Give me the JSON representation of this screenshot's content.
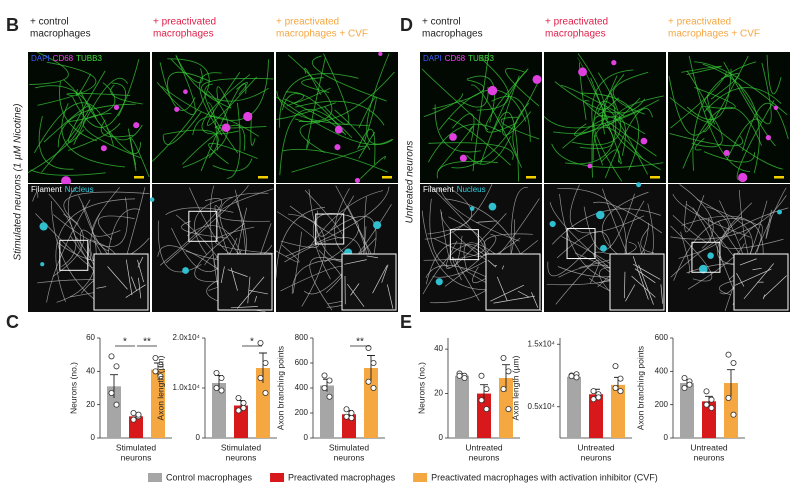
{
  "panels": {
    "B": "B",
    "D": "D",
    "C": "C",
    "E": "E"
  },
  "headers": [
    [
      "+ control",
      "macrophages"
    ],
    [
      "+ preactivated",
      "macrophages"
    ],
    [
      "+ preactivated",
      "macrophages + CVF"
    ]
  ],
  "header_colors": [
    "#222222",
    "#e0204a",
    "#f5a742"
  ],
  "stain_label": [
    {
      "text": "DAPI",
      "color": "#3a5cff"
    },
    {
      "text": "CD68",
      "color": "#ff40ff"
    },
    {
      "text": "TUBB3",
      "color": "#40e040"
    }
  ],
  "filament_label": [
    {
      "text": "Filament",
      "color": "#ffffff"
    },
    {
      "text": "Nucleus",
      "color": "#30d0e0"
    }
  ],
  "row_labels": [
    "Stimulated neurons (1 µM Nicotine)",
    "Untreated neurons"
  ],
  "legend": [
    {
      "name": "Control macrophages",
      "color": "#a6a6a6"
    },
    {
      "name": "Preactivated macrophages",
      "color": "#d7191c"
    },
    {
      "name": "Preactivated macrophages with activation inhibitor (CVF)",
      "color": "#f5a742"
    }
  ],
  "chart_data": [
    {
      "type": "bar",
      "ylabel": "Neurons (no.)",
      "xlabel": [
        "Stimulated",
        "neurons"
      ],
      "ylim": [
        0,
        60
      ],
      "yticks": [
        0,
        20,
        40,
        60
      ],
      "values": [
        31,
        13,
        41
      ],
      "errors": [
        7,
        2,
        4
      ],
      "points": [
        [
          49,
          43,
          27,
          20
        ],
        [
          15,
          13,
          11,
          14
        ],
        [
          48,
          44,
          40,
          37
        ]
      ],
      "significance": [
        {
          "label": "*",
          "between": [
            "Control macrophages",
            "Preactivated macrophages"
          ]
        },
        {
          "label": "**",
          "between": [
            "Preactivated macrophages",
            "Preactivated macrophages with activation inhibitor (CVF)"
          ]
        }
      ]
    },
    {
      "type": "bar",
      "ylabel": "Axon length (µm)",
      "xlabel": [
        "Stimulated",
        "neurons"
      ],
      "ylim": [
        0,
        20000
      ],
      "yticks": [
        0,
        {
          "value": 10000,
          "label": "1.0x10⁴"
        },
        {
          "value": 20000,
          "label": "2.0x10⁴"
        }
      ],
      "values": [
        11000,
        6500,
        14000
      ],
      "errors": [
        1500,
        1000,
        3000
      ],
      "points": [
        [
          13000,
          12000,
          10000,
          9500
        ],
        [
          8000,
          7000,
          5500,
          6000
        ],
        [
          19000,
          15000,
          12000,
          9000
        ]
      ],
      "significance": [
        {
          "label": "*",
          "between": [
            "Preactivated macrophages",
            "Preactivated macrophages with activation inhibitor (CVF)"
          ]
        }
      ]
    },
    {
      "type": "bar",
      "ylabel": "Axon branching points",
      "xlabel": [
        "Stimulated",
        "neurons"
      ],
      "ylim": [
        0,
        800
      ],
      "yticks": [
        0,
        200,
        400,
        600,
        800
      ],
      "values": [
        420,
        190,
        560
      ],
      "errors": [
        50,
        30,
        100
      ],
      "points": [
        [
          500,
          460,
          400,
          330
        ],
        [
          230,
          200,
          170,
          160
        ],
        [
          720,
          600,
          450,
          400
        ]
      ],
      "significance": [
        {
          "label": "**",
          "between": [
            "Preactivated macrophages",
            "Preactivated macrophages with activation inhibitor (CVF)"
          ]
        }
      ]
    },
    {
      "type": "bar",
      "ylabel": "Neurons (no.)",
      "xlabel": [
        "Untreated",
        "neurons"
      ],
      "ylim": [
        0,
        45
      ],
      "yticks": [
        0,
        20,
        40
      ],
      "values": [
        28,
        20,
        27
      ],
      "errors": [
        1,
        4,
        6
      ],
      "points": [
        [
          29,
          28,
          28,
          27
        ],
        [
          28,
          22,
          17,
          13
        ],
        [
          36,
          30,
          22,
          13
        ]
      ],
      "significance": []
    },
    {
      "type": "bar",
      "ylabel": "Axon length (µm)",
      "xlabel": [
        "Untreated",
        "neurons"
      ],
      "ylim": [
        0,
        16000
      ],
      "yticks": [
        {
          "value": 5000,
          "label": "0.5x10⁴"
        },
        {
          "value": 15000,
          "label": "1.5x10⁴"
        }
      ],
      "values": [
        9800,
        7000,
        8500
      ],
      "errors": [
        300,
        800,
        1200
      ],
      "points": [
        [
          10000,
          10200,
          9900,
          9700
        ],
        [
          7500,
          7000,
          6200,
          6500
        ],
        [
          11500,
          9500,
          8000,
          7500
        ]
      ],
      "significance": []
    },
    {
      "type": "bar",
      "ylabel": "Axon branching points",
      "xlabel": [
        "Untreated",
        "neurons"
      ],
      "ylim": [
        0,
        600
      ],
      "yticks": [
        0,
        200,
        400,
        600
      ],
      "values": [
        330,
        220,
        330
      ],
      "errors": [
        20,
        30,
        80
      ],
      "points": [
        [
          360,
          340,
          300,
          320
        ],
        [
          280,
          230,
          200,
          180
        ],
        [
          500,
          450,
          240,
          140
        ]
      ],
      "significance": []
    }
  ]
}
